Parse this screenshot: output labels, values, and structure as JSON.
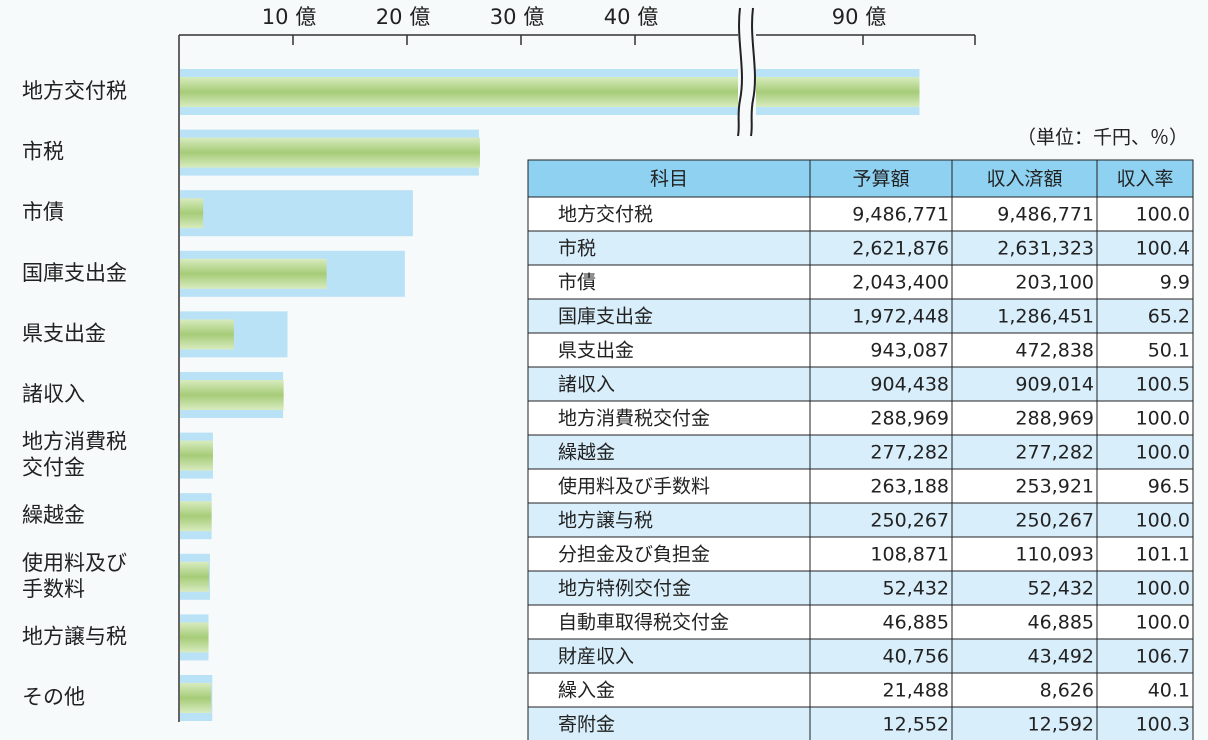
{
  "chart_data": {
    "type": "hbar",
    "categories": [
      "地方交付税",
      "市税",
      "市債",
      "国庫支出金",
      "県支出金",
      "諸収入",
      "地方消費税\n交付金",
      "繰越金",
      "使用料及び\n手数料",
      "地方譲与税",
      "その他"
    ],
    "series": [
      {
        "color": "#b9e2f7",
        "values": [
          94.86771,
          26.21876,
          20.434,
          19.72448,
          9.43087,
          9.04438,
          2.88969,
          2.77282,
          2.63188,
          2.50267,
          2.82984
        ]
      },
      {
        "color": "#b3d48a",
        "values": [
          94.86771,
          26.31323,
          2.031,
          12.86451,
          4.72838,
          9.09014,
          2.88969,
          2.77282,
          2.53921,
          2.50267,
          2.7412
        ]
      }
    ],
    "xlim": [
      0,
      100
    ],
    "axis_break": [
      50,
      80
    ],
    "xticks": [
      {
        "value": 10,
        "label": "10 億"
      },
      {
        "value": 20,
        "label": "20 億"
      },
      {
        "value": 30,
        "label": "30 億"
      },
      {
        "value": 40,
        "label": "40 億"
      },
      {
        "value": 90,
        "label": "90 億"
      }
    ]
  },
  "table": {
    "unit": "（単位：千円、％）",
    "header": [
      "科目",
      "予算額",
      "収入済額",
      "収入率"
    ],
    "rows": [
      [
        "地方交付税",
        "9,486,771",
        "9,486,771",
        "100.0"
      ],
      [
        "市税",
        "2,621,876",
        "2,631,323",
        "100.4"
      ],
      [
        "市債",
        "2,043,400",
        "203,100",
        "9.9"
      ],
      [
        "国庫支出金",
        "1,972,448",
        "1,286,451",
        "65.2"
      ],
      [
        "県支出金",
        "943,087",
        "472,838",
        "50.1"
      ],
      [
        "諸収入",
        "904,438",
        "909,014",
        "100.5"
      ],
      [
        "地方消費税交付金",
        "288,969",
        "288,969",
        "100.0"
      ],
      [
        "繰越金",
        "277,282",
        "277,282",
        "100.0"
      ],
      [
        "使用料及び手数料",
        "263,188",
        "253,921",
        "96.5"
      ],
      [
        "地方譲与税",
        "250,267",
        "250,267",
        "100.0"
      ],
      [
        "分担金及び負担金",
        "108,871",
        "110,093",
        "101.1"
      ],
      [
        "地方特例交付金",
        "52,432",
        "52,432",
        "100.0"
      ],
      [
        "自動車取得税交付金",
        "46,885",
        "46,885",
        "100.0"
      ],
      [
        "財産収入",
        "40,756",
        "43,492",
        "106.7"
      ],
      [
        "繰入金",
        "21,488",
        "8,626",
        "40.1"
      ],
      [
        "寄附金",
        "12,552",
        "12,592",
        "100.3"
      ]
    ]
  }
}
